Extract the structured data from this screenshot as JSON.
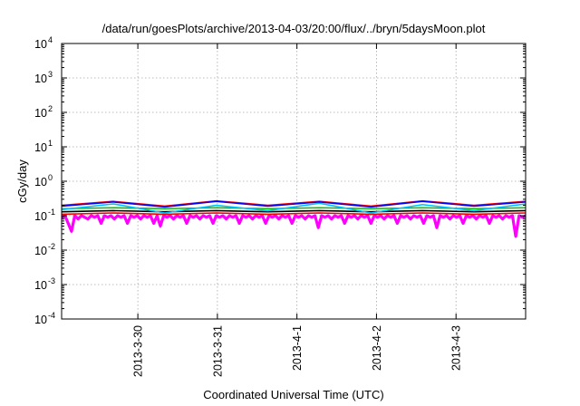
{
  "chart_data": {
    "type": "line",
    "title": "/data/run/goesPlots/archive/2013-04-03/20:00/flux/../bryn/5daysMoon.plot",
    "xlabel": "Coordinated Universal Time (UTC)",
    "ylabel": "cGy/day",
    "yscale": "log",
    "ylim": [
      0.0001,
      10000
    ],
    "xlim": [
      "2013-03-29 01:00",
      "2013-04-03 21:00"
    ],
    "grid": true,
    "x_ticks": [
      {
        "label": "2013-3-30",
        "date": "2013-03-30 00:00"
      },
      {
        "label": "2013-3-31",
        "date": "2013-03-31 00:00"
      },
      {
        "label": "2013-4-1",
        "date": "2013-04-01 00:00"
      },
      {
        "label": "2013-4-2",
        "date": "2013-04-02 00:00"
      },
      {
        "label": "2013-4-3",
        "date": "2013-04-03 00:00"
      }
    ],
    "y_ticks": [
      {
        "base": "10",
        "exp": "-4",
        "value": 0.0001
      },
      {
        "base": "10",
        "exp": "-3",
        "value": 0.001
      },
      {
        "base": "10",
        "exp": "-2",
        "value": 0.01
      },
      {
        "base": "10",
        "exp": "-1",
        "value": 0.1
      },
      {
        "base": "10",
        "exp": "0",
        "value": 1
      },
      {
        "base": "10",
        "exp": "1",
        "value": 10
      },
      {
        "base": "10",
        "exp": "2",
        "value": 100
      },
      {
        "base": "10",
        "exp": "3",
        "value": 1000
      },
      {
        "base": "10",
        "exp": "4",
        "value": 10000
      }
    ],
    "series": [
      {
        "color": "#ff00ff",
        "values": [
          0.09,
          0.1,
          0.06,
          0.035,
          0.1,
          0.08,
          0.1,
          0.09,
          0.08,
          0.1,
          0.09,
          0.1,
          0.06,
          0.1,
          0.09,
          0.1,
          0.08,
          0.1,
          0.09,
          0.1,
          0.06,
          0.1,
          0.09,
          0.1,
          0.08,
          0.1,
          0.09,
          0.1,
          0.06,
          0.1,
          0.05,
          0.1,
          0.09,
          0.1,
          0.08,
          0.1,
          0.09,
          0.1,
          0.06,
          0.1,
          0.09,
          0.1,
          0.08,
          0.1,
          0.09,
          0.1,
          0.06,
          0.1,
          0.09,
          0.1,
          0.08,
          0.1,
          0.09,
          0.1,
          0.06,
          0.1,
          0.09,
          0.1,
          0.08,
          0.1,
          0.09,
          0.1,
          0.06,
          0.1,
          0.09,
          0.1,
          0.08,
          0.1,
          0.09,
          0.1,
          0.06,
          0.1,
          0.09,
          0.1,
          0.08,
          0.1,
          0.09,
          0.1,
          0.045,
          0.1,
          0.09,
          0.1,
          0.08,
          0.1,
          0.09,
          0.1,
          0.06,
          0.1,
          0.09,
          0.1,
          0.08,
          0.1,
          0.09,
          0.1,
          0.06,
          0.1,
          0.09,
          0.1,
          0.08,
          0.1,
          0.09,
          0.1,
          0.06,
          0.1,
          0.09,
          0.1,
          0.08,
          0.1,
          0.09,
          0.1,
          0.06,
          0.1,
          0.09,
          0.1,
          0.045,
          0.1,
          0.09,
          0.1,
          0.08,
          0.1,
          0.09,
          0.1,
          0.06,
          0.1,
          0.09,
          0.1,
          0.08,
          0.1,
          0.09,
          0.1,
          0.06,
          0.1,
          0.09,
          0.1,
          0.08,
          0.1,
          0.09,
          0.1,
          0.025,
          0.1,
          0.09,
          0.1
        ]
      },
      {
        "color": "#ff0000",
        "values": [
          0.11,
          0.12,
          0.11,
          0.12,
          0.11,
          0.12,
          0.11,
          0.12,
          0.11,
          0.12
        ]
      },
      {
        "color": "#000000",
        "values": [
          0.13,
          0.14,
          0.13,
          0.14,
          0.13,
          0.14,
          0.13,
          0.14,
          0.13,
          0.14
        ]
      },
      {
        "color": "#00c000",
        "values": [
          0.16,
          0.17,
          0.16,
          0.17,
          0.16,
          0.17,
          0.16,
          0.17,
          0.16,
          0.17
        ]
      },
      {
        "color": "#00c0ff",
        "values": [
          0.15,
          0.22,
          0.12,
          0.2,
          0.14,
          0.23,
          0.12,
          0.21,
          0.14,
          0.22
        ]
      },
      {
        "color": "#ff0000",
        "values": [
          0.2,
          0.26,
          0.19,
          0.27,
          0.2,
          0.26,
          0.19,
          0.27,
          0.2,
          0.26
        ]
      },
      {
        "color": "#0000ff",
        "values": [
          0.19,
          0.25,
          0.18,
          0.26,
          0.19,
          0.25,
          0.18,
          0.26,
          0.19,
          0.25
        ]
      }
    ]
  }
}
